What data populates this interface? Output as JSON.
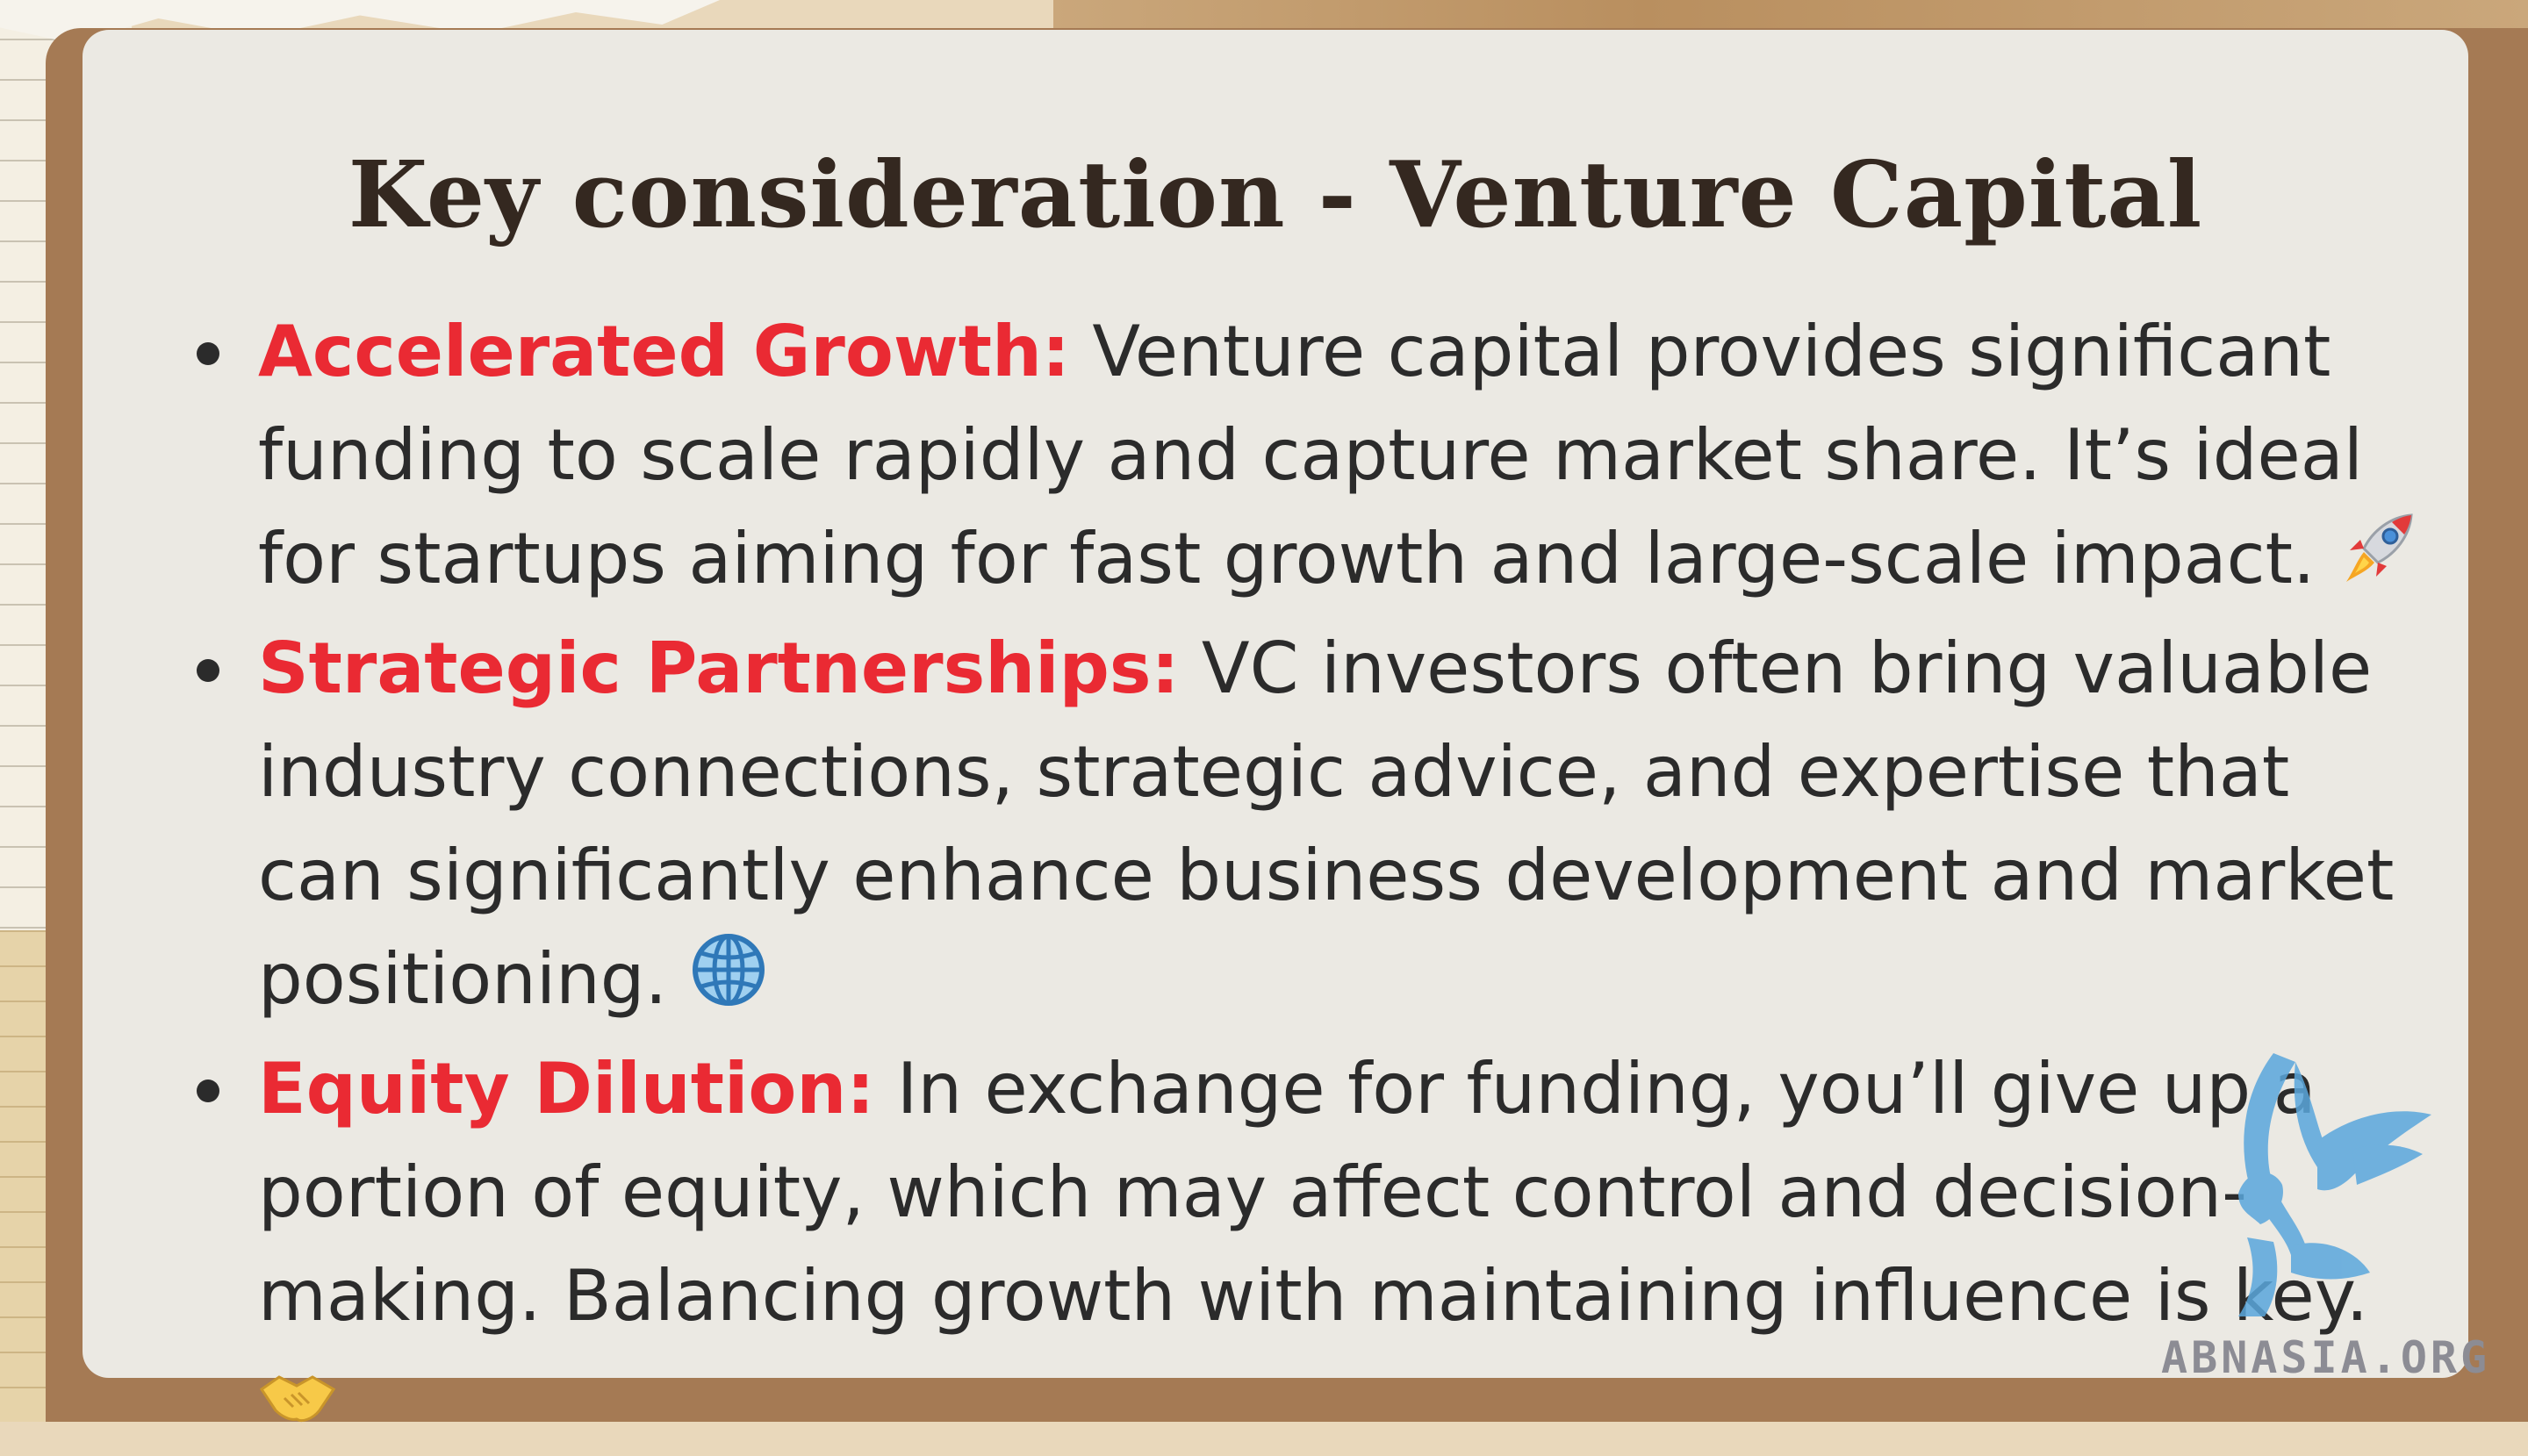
{
  "slide": {
    "title": "Key consideration - Venture Capital",
    "bullets": [
      {
        "label": "Accelerated Growth:",
        "text": "Venture capital provides significant funding to scale rapidly and capture market share. It’s ideal for startups aiming for fast growth and large-scale impact.",
        "icon": "rocket-icon"
      },
      {
        "label": "Strategic Partnerships:",
        "text": "VC investors often bring valuable industry connections, strategic advice, and expertise that can significantly enhance business development and market positioning.",
        "icon": "globe-icon"
      },
      {
        "label": "Equity Dilution:",
        "text": "In exchange for funding, you’ll give up a portion of equity, which may affect control and decision-making. Balancing growth with maintaining influence is key.",
        "icon": "handshake-icon"
      }
    ],
    "label_color": "#ea2a33"
  },
  "watermark": {
    "text": "ABNASIA.ORG",
    "logo_icon": "griffin-logo-icon"
  }
}
